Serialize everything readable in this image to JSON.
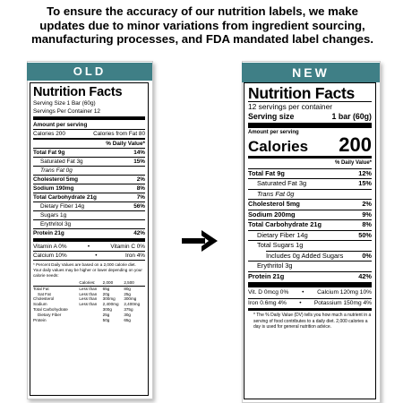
{
  "header": {
    "line1": "To ensure the accuracy of our nutrition labels, we make",
    "line2": "updates due to minor variations from ingredient sourcing,",
    "line3": "manufacturing processes, and FDA mandated label changes."
  },
  "colors": {
    "tag": "#3f7f86",
    "text": "#000000"
  },
  "old": {
    "tag": "OLD",
    "title": "Nutrition Facts",
    "serving_size": "Serving Size 1 Bar (60g)",
    "servings_per": "Servings Per Container 12",
    "amount_per": "Amount per serving",
    "calories": "Calories 200",
    "calories_fat": "Calories from Fat 80",
    "dv_header": "% Daily Value*",
    "rows": [
      {
        "name": "Total Fat 9g",
        "dv": "14%"
      },
      {
        "name": "Saturated Fat 3g",
        "dv": "15%"
      },
      {
        "name": "Trans Fat 0g",
        "dv": ""
      },
      {
        "name": "Cholesterol 5mg",
        "dv": "2%"
      },
      {
        "name": "Sodium 190mg",
        "dv": "8%"
      },
      {
        "name": "Total Carbohydrate 21g",
        "dv": "7%"
      },
      {
        "name": "Dietary Fiber 14g",
        "dv": "56%"
      },
      {
        "name": "Sugars 1g",
        "dv": ""
      },
      {
        "name": "Erythritol 3g",
        "dv": ""
      },
      {
        "name": "Protein 21g",
        "dv": "42%"
      }
    ],
    "vit_a": "Vitamin A 0%",
    "vit_c": "Vitamin C 0%",
    "calcium": "Calcium 10%",
    "iron": "Iron 4%",
    "bullet": "•",
    "footnote": "* Percent Daily Values are based on a 2,000 calorie diet. Your daily values may be higher or lower depending on your calorie needs:",
    "table": {
      "head": [
        "",
        "Calories:",
        "2,000",
        "2,500"
      ],
      "rows": [
        [
          "Total Fat",
          "Less than",
          "65g",
          "80g"
        ],
        [
          "Sat Fat",
          "Less than",
          "20g",
          "25g"
        ],
        [
          "Cholesterol",
          "Less than",
          "300mg",
          "300mg"
        ],
        [
          "Sodium",
          "Less than",
          "2,400mg",
          "2,400mg"
        ],
        [
          "Total Carbohydrate",
          "",
          "300g",
          "375g"
        ],
        [
          "Dietary Fiber",
          "",
          "25g",
          "30g"
        ],
        [
          "Protein",
          "",
          "50g",
          "65g"
        ]
      ]
    }
  },
  "new": {
    "tag": "NEW",
    "title": "Nutrition Facts",
    "servings_per": "12 servings per container",
    "serving_size_label": "Serving size",
    "serving_size_value": "1 bar (60g)",
    "amount_per": "Amount per serving",
    "calories_label": "Calories",
    "calories_value": "200",
    "dv_header": "% Daily Value*",
    "rows": [
      {
        "name": "Total Fat 9g",
        "dv": "12%"
      },
      {
        "name": "Saturated Fat 3g",
        "dv": "15%"
      },
      {
        "name": "Trans Fat 0g",
        "dv": ""
      },
      {
        "name": "Cholesterol 5mg",
        "dv": "2%"
      },
      {
        "name": "Sodium 200mg",
        "dv": "9%"
      },
      {
        "name": "Total Carbohydrate 21g",
        "dv": "8%"
      },
      {
        "name": "Dietary Fiber 14g",
        "dv": "50%"
      },
      {
        "name": "Total Sugars 1g",
        "dv": ""
      },
      {
        "name": "Includes 0g Added Sugars",
        "dv": "0%"
      },
      {
        "name": "Erythritol 3g",
        "dv": ""
      },
      {
        "name": "Protein 21g",
        "dv": "42%"
      }
    ],
    "vit_d": "Vit. D 0mcg 0%",
    "calcium": "Calcium 120mg 10%",
    "iron": "Iron 0.6mg 4%",
    "potassium": "Potassium 150mg 4%",
    "bullet": "•",
    "footnote": "* The % Daily Value (DV) tells you how much a nutrient in a serving of food contributes to a daily diet. 2,000 calories a day is used for general nutrition advice."
  }
}
